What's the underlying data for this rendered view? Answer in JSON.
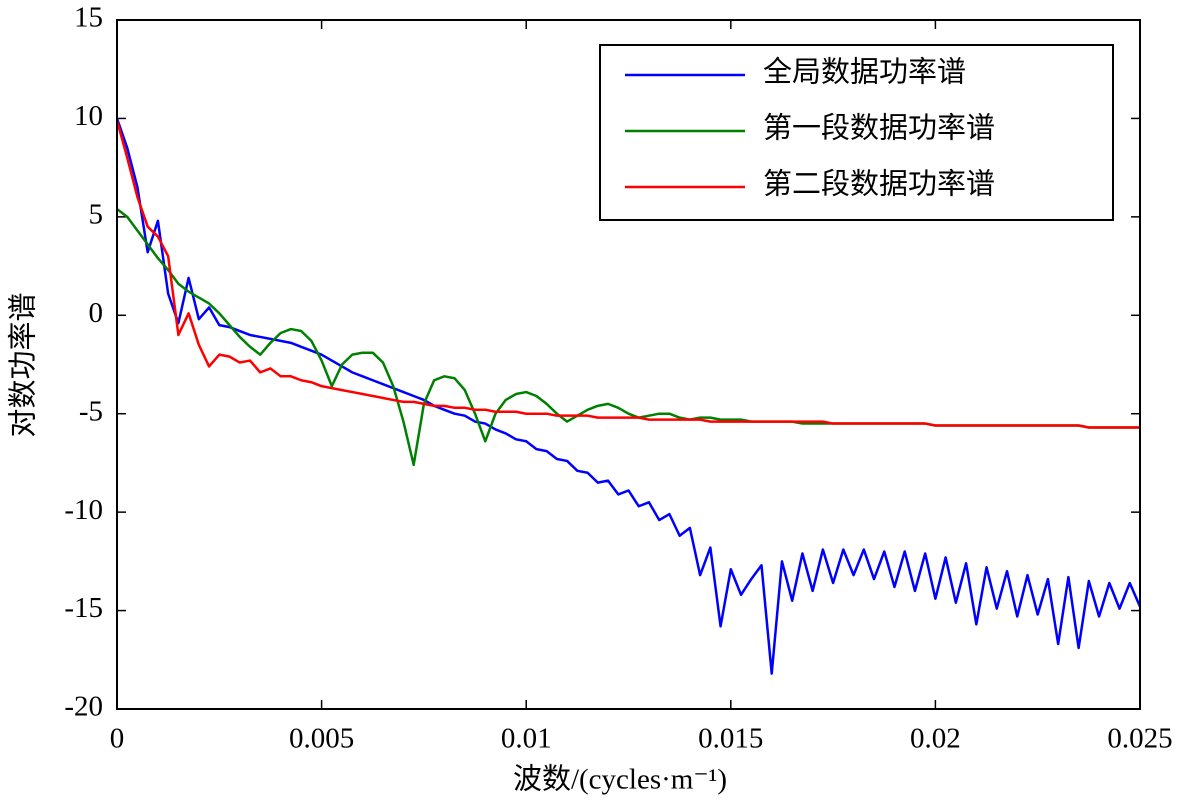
{
  "chart_data": {
    "type": "line",
    "xlabel": "波数/(cycles·m⁻¹)",
    "ylabel": "对数功率谱",
    "xlim": [
      0,
      0.025
    ],
    "xticks": [
      0,
      0.005,
      0.01,
      0.015,
      0.02,
      0.025
    ],
    "ylim": [
      -20,
      15
    ],
    "yticks": [
      15,
      10,
      5,
      0,
      -5,
      -10,
      -15,
      -20
    ],
    "legend": "upper right",
    "x": [
      0,
      0.00025,
      0.0005,
      0.00075,
      0.001,
      0.00125,
      0.0015,
      0.00175,
      0.002,
      0.00225,
      0.0025,
      0.00275,
      0.003,
      0.00325,
      0.0035,
      0.00375,
      0.004,
      0.00425,
      0.0045,
      0.00475,
      0.005,
      0.00525,
      0.0055,
      0.00575,
      0.006,
      0.00625,
      0.0065,
      0.00675,
      0.007,
      0.00725,
      0.0075,
      0.00775,
      0.008,
      0.00825,
      0.0085,
      0.00875,
      0.009,
      0.00925,
      0.0095,
      0.00975,
      0.01,
      0.01025,
      0.0105,
      0.01075,
      0.011,
      0.01125,
      0.0115,
      0.01175,
      0.012,
      0.01225,
      0.0125,
      0.01275,
      0.013,
      0.01325,
      0.0135,
      0.01375,
      0.014,
      0.01425,
      0.0145,
      0.01475,
      0.015,
      0.01525,
      0.0155,
      0.01575,
      0.016,
      0.01625,
      0.0165,
      0.01675,
      0.017,
      0.01725,
      0.0175,
      0.01775,
      0.018,
      0.01825,
      0.0185,
      0.01875,
      0.019,
      0.01925,
      0.0195,
      0.01975,
      0.02,
      0.02025,
      0.0205,
      0.02075,
      0.021,
      0.02125,
      0.0215,
      0.02175,
      0.022,
      0.02225,
      0.0225,
      0.02275,
      0.023,
      0.02325,
      0.0235,
      0.02375,
      0.024,
      0.02425,
      0.0245,
      0.02475,
      0.025
    ],
    "series": [
      {
        "name": "全局数据功率谱",
        "color": "#0000ff",
        "values": [
          10,
          8.5,
          6.5,
          3.2,
          4.8,
          1.1,
          -0.4,
          1.9,
          -0.2,
          0.4,
          -0.5,
          -0.6,
          -0.8,
          -1.0,
          -1.1,
          -1.2,
          -1.3,
          -1.4,
          -1.6,
          -1.8,
          -2.0,
          -2.3,
          -2.6,
          -2.9,
          -3.1,
          -3.3,
          -3.5,
          -3.7,
          -3.9,
          -4.1,
          -4.3,
          -4.6,
          -4.8,
          -5.0,
          -5.1,
          -5.4,
          -5.5,
          -5.8,
          -6.0,
          -6.3,
          -6.4,
          -6.8,
          -6.9,
          -7.3,
          -7.4,
          -7.9,
          -8.0,
          -8.5,
          -8.4,
          -9.1,
          -8.9,
          -9.7,
          -9.5,
          -10.4,
          -10.1,
          -11.2,
          -10.8,
          -13.2,
          -11.8,
          -15.8,
          -12.9,
          -14.2,
          -13.4,
          -12.7,
          -18.2,
          -12.5,
          -14.5,
          -12.1,
          -14.0,
          -11.9,
          -13.6,
          -11.9,
          -13.2,
          -11.9,
          -13.4,
          -12.0,
          -13.8,
          -12.0,
          -14.0,
          -12.1,
          -14.4,
          -12.3,
          -14.6,
          -12.6,
          -15.7,
          -12.8,
          -14.9,
          -13.0,
          -15.3,
          -13.2,
          -15.2,
          -13.4,
          -16.7,
          -13.3,
          -16.9,
          -13.5,
          -15.3,
          -13.6,
          -14.9,
          -13.6,
          -14.8
        ]
      },
      {
        "name": "第一段数据功率谱",
        "color": "#008000",
        "values": [
          5.4,
          5.0,
          4.3,
          3.6,
          2.9,
          2.3,
          1.6,
          1.2,
          0.9,
          0.6,
          0.1,
          -0.5,
          -1.1,
          -1.6,
          -2.0,
          -1.4,
          -0.9,
          -0.7,
          -0.8,
          -1.3,
          -2.3,
          -3.6,
          -2.5,
          -2.0,
          -1.9,
          -1.9,
          -2.4,
          -3.6,
          -5.4,
          -7.6,
          -4.5,
          -3.3,
          -3.1,
          -3.2,
          -3.8,
          -5.0,
          -6.4,
          -5.0,
          -4.3,
          -4.0,
          -3.9,
          -4.1,
          -4.5,
          -5.0,
          -5.4,
          -5.1,
          -4.8,
          -4.6,
          -4.5,
          -4.7,
          -5.0,
          -5.2,
          -5.1,
          -5.0,
          -5.0,
          -5.2,
          -5.3,
          -5.2,
          -5.2,
          -5.3,
          -5.3,
          -5.3,
          -5.4,
          -5.4,
          -5.4,
          -5.4,
          -5.4,
          -5.5,
          -5.5,
          -5.5,
          -5.5,
          -5.5,
          -5.5,
          -5.5,
          -5.5,
          -5.5,
          -5.5,
          -5.5,
          -5.5,
          -5.5,
          -5.6,
          -5.6,
          -5.6,
          -5.6,
          -5.6,
          -5.6,
          -5.6,
          -5.6,
          -5.6,
          -5.6,
          -5.6,
          -5.6,
          -5.6,
          -5.6,
          -5.6,
          -5.7,
          -5.7,
          -5.7,
          -5.7,
          -5.7,
          -5.7
        ]
      },
      {
        "name": "第二段数据功率谱",
        "color": "#ff0000",
        "values": [
          9.9,
          8.0,
          6.0,
          4.5,
          4.0,
          3.0,
          -1.0,
          0.1,
          -1.5,
          -2.6,
          -2.0,
          -2.1,
          -2.4,
          -2.3,
          -2.9,
          -2.7,
          -3.1,
          -3.1,
          -3.3,
          -3.4,
          -3.6,
          -3.7,
          -3.8,
          -3.9,
          -4.0,
          -4.1,
          -4.2,
          -4.3,
          -4.4,
          -4.4,
          -4.5,
          -4.6,
          -4.6,
          -4.7,
          -4.7,
          -4.8,
          -4.8,
          -4.9,
          -4.9,
          -4.9,
          -5.0,
          -5.0,
          -5.0,
          -5.1,
          -5.1,
          -5.1,
          -5.1,
          -5.2,
          -5.2,
          -5.2,
          -5.2,
          -5.2,
          -5.3,
          -5.3,
          -5.3,
          -5.3,
          -5.3,
          -5.3,
          -5.4,
          -5.4,
          -5.4,
          -5.4,
          -5.4,
          -5.4,
          -5.4,
          -5.4,
          -5.4,
          -5.4,
          -5.4,
          -5.4,
          -5.5,
          -5.5,
          -5.5,
          -5.5,
          -5.5,
          -5.5,
          -5.5,
          -5.5,
          -5.5,
          -5.5,
          -5.6,
          -5.6,
          -5.6,
          -5.6,
          -5.6,
          -5.6,
          -5.6,
          -5.6,
          -5.6,
          -5.6,
          -5.6,
          -5.6,
          -5.6,
          -5.6,
          -5.6,
          -5.7,
          -5.7,
          -5.7,
          -5.7,
          -5.7,
          -5.7
        ]
      }
    ]
  }
}
